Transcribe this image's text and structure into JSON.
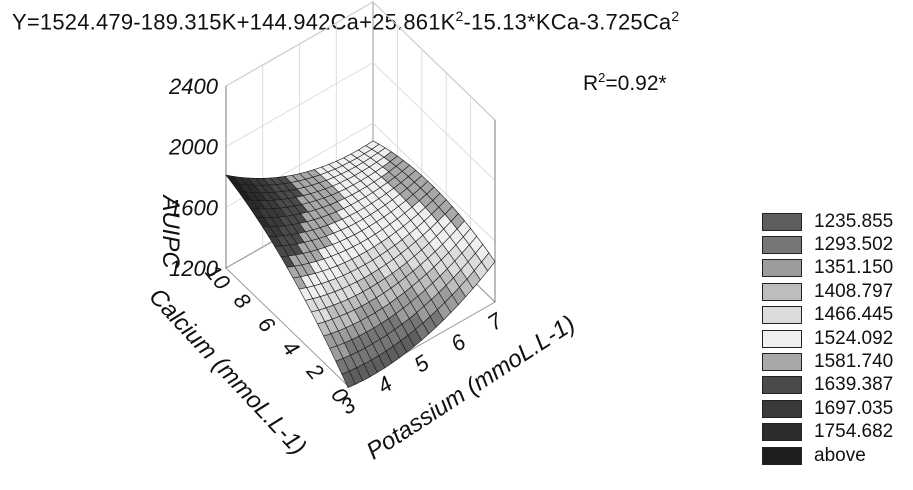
{
  "header": {
    "equation_prefix": "Y=1524.479-189.315K+144.942Ca+25.861K",
    "equation_sup1": "2",
    "equation_mid": "-15.13*KCa-3.725Ca",
    "equation_sup2": "2",
    "r2_prefix": "R",
    "r2_sup": "2",
    "r2_value": "=0.92*"
  },
  "chart_data": {
    "type": "surface",
    "title": "Y=1524.479-189.315K+144.942Ca+25.861K2-15.13*KCa-3.725Ca2",
    "annotation": "R2=0.92*",
    "model": {
      "intercept": 1524.479,
      "K": -189.315,
      "Ca": 144.942,
      "K2": 25.861,
      "KCa": -15.13,
      "Ca2": -3.725
    },
    "x": {
      "label": "Potassium (mmoL.L-1)",
      "ticks": [
        "3",
        "4",
        "5",
        "6",
        "7"
      ],
      "range": [
        3,
        7
      ]
    },
    "y": {
      "label": "Calcium (mmoL.L-1)",
      "ticks": [
        "0",
        "2",
        "4",
        "6",
        "8",
        "10"
      ],
      "range": [
        0,
        10
      ]
    },
    "z": {
      "label": "AUIPC",
      "ticks": [
        "1200",
        "1600",
        "2000",
        "2400"
      ],
      "range": [
        1200,
        2400
      ]
    },
    "grid": true,
    "legend_position": "right",
    "legend": [
      {
        "label": "1235.855",
        "color": "#5e5e5e"
      },
      {
        "label": "1293.502",
        "color": "#767676"
      },
      {
        "label": "1351.150",
        "color": "#9c9c9c"
      },
      {
        "label": "1408.797",
        "color": "#bdbdbd"
      },
      {
        "label": "1466.445",
        "color": "#dcdcdc"
      },
      {
        "label": "1524.092",
        "color": "#efefef"
      },
      {
        "label": "1581.740",
        "color": "#a8a8a8"
      },
      {
        "label": "1639.387",
        "color": "#4a4a4a"
      },
      {
        "label": "1697.035",
        "color": "#3a3a3a"
      },
      {
        "label": "1754.682",
        "color": "#2c2c2c"
      },
      {
        "label": "above",
        "color": "#1e1e1e"
      }
    ]
  }
}
